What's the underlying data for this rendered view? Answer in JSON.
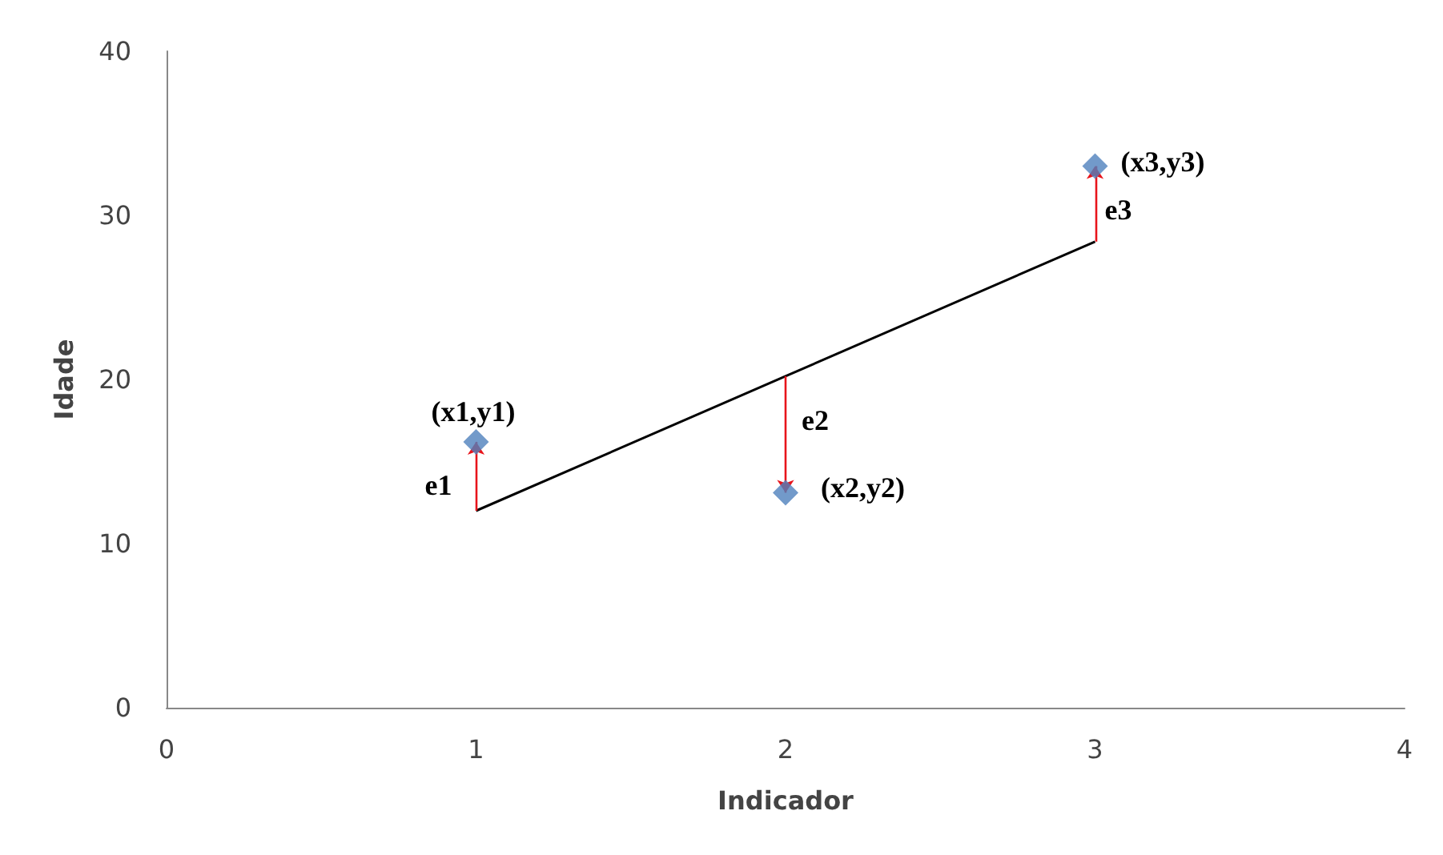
{
  "chart_data": {
    "type": "scatter",
    "xlabel": "Indicador",
    "ylabel": "Idade",
    "xlim": [
      0,
      4
    ],
    "xticks": [
      0,
      1,
      2,
      3,
      4
    ],
    "ylim": [
      0,
      40
    ],
    "yticks": [
      0,
      10,
      20,
      30,
      40
    ],
    "grid": false,
    "marker": "diamond",
    "series": [
      {
        "color": "#4f81bd",
        "x": [
          1,
          2,
          3
        ],
        "values": [
          16.2,
          13.1,
          33.0
        ]
      },
      {
        "type": "line",
        "color": "#000000",
        "x": [
          1,
          2,
          3
        ],
        "values": [
          12.0,
          20.2,
          28.4
        ],
        "marker": "none"
      }
    ],
    "annotations": [
      {
        "text": "(x1,y1)",
        "x": 1,
        "y": 16.2
      },
      {
        "text": "(x2,y2)",
        "x": 2,
        "y": 13.1
      },
      {
        "text": "(x3,y3)",
        "x": 3,
        "y": 33.0
      },
      {
        "text": "e1",
        "x": 1,
        "y": 16.2
      },
      {
        "text": "e2",
        "x": 2,
        "y": 13.1
      },
      {
        "text": "e3",
        "x": 3,
        "y": 33.0
      }
    ]
  }
}
